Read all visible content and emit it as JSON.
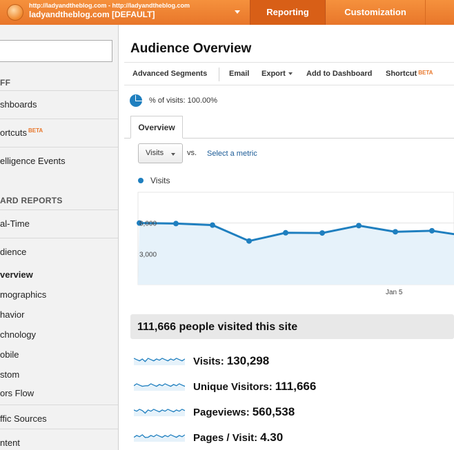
{
  "topbar": {
    "account_url": "http://ladyandtheblog.com - http://ladyandtheblog.com",
    "account_profile": "ladyandtheblog.com [DEFAULT]",
    "nav": [
      "Reporting",
      "Customization"
    ],
    "brand_color": "#e8762a",
    "active_color": "#d85f17"
  },
  "sidebar": {
    "items": [
      {
        "label": "FF",
        "kind": "header"
      },
      {
        "label": "shboards"
      },
      {
        "label": "ortcuts",
        "badge": "BETA"
      },
      {
        "label": "elligence Events"
      },
      {
        "label": "ARD REPORTS",
        "kind": "header"
      },
      {
        "label": "al-Time"
      },
      {
        "label": "dience"
      },
      {
        "label": "verview",
        "selected": true
      },
      {
        "label": "mographics"
      },
      {
        "label": "havior"
      },
      {
        "label": "chnology"
      },
      {
        "label": "obile"
      },
      {
        "label": "stom"
      },
      {
        "label": "ors Flow"
      },
      {
        "label": "ffic Sources"
      },
      {
        "label": "ntent"
      }
    ]
  },
  "main": {
    "title": "Audience Overview",
    "toolbar": {
      "advanced_segments": "Advanced Segments",
      "email": "Email",
      "export": "Export",
      "add_to_dashboard": "Add to Dashboard",
      "shortcut": "Shortcut",
      "shortcut_badge": "BETA"
    },
    "segment": "% of visits: 100.00%",
    "tab": "Overview",
    "metric_select": "Visits",
    "vs": "vs.",
    "select_metric": "Select a metric",
    "legend": "Visits",
    "summary": "111,666 people visited this site",
    "stats": [
      {
        "label": "Visits:",
        "value": "130,298"
      },
      {
        "label": "Unique Visitors:",
        "value": "111,666"
      },
      {
        "label": "Pageviews:",
        "value": "560,538"
      },
      {
        "label": "Pages / Visit:",
        "value": "4.30"
      }
    ]
  },
  "chart_data": {
    "type": "area",
    "series": [
      {
        "name": "Visits",
        "values": [
          6000,
          5950,
          5800,
          4250,
          5050,
          5030,
          5750,
          5150,
          5250,
          4700
        ],
        "color": "#1f7fbf"
      }
    ],
    "yticks": [
      "6,000",
      "3,000"
    ],
    "ytick_values": [
      6000,
      3000
    ],
    "xticks": [
      {
        "label": "Jan 5",
        "index": 7
      }
    ],
    "ylim": [
      0,
      9000
    ],
    "grid": true,
    "legend": "top-left"
  }
}
